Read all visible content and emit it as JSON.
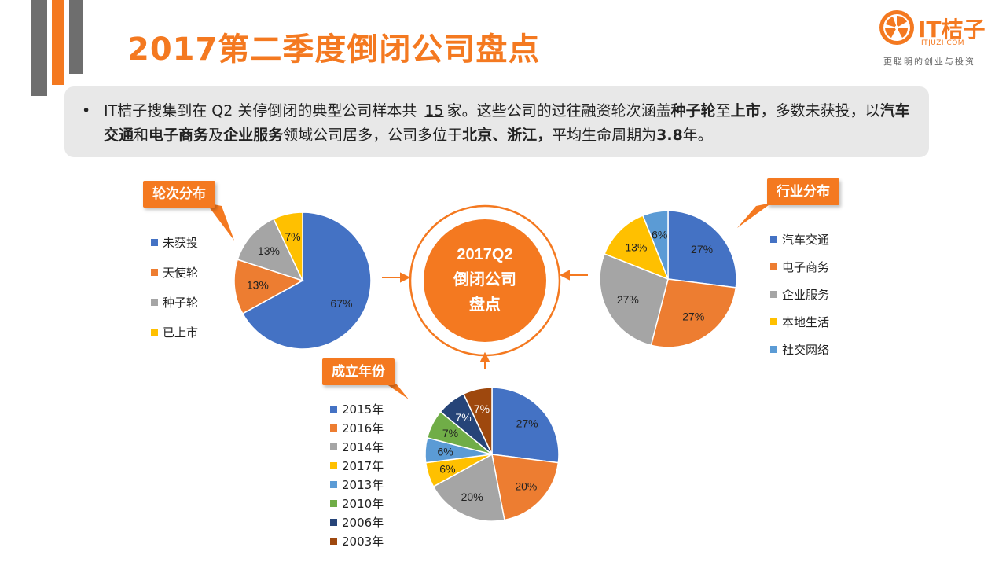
{
  "title": "2017第二季度倒闭公司盘点",
  "logo": {
    "name": "IT桔子",
    "url": "ITJUZI.COM",
    "slogan": "更聪明的创业与投资"
  },
  "summary": {
    "bullet": "•",
    "parts": [
      "IT桔子搜集到在 Q2 关停倒闭的典型公司样本共",
      "15",
      "家。这些公司的过往融资轮次涵盖",
      "种子轮",
      "至",
      "上市",
      "，多数未获投，以",
      "汽车交通",
      "和",
      "电子商务",
      "及",
      "企业服务",
      "领域公司居多，公司多位于",
      "北京、浙江，",
      "平均生命周期为",
      "3.8",
      "年。"
    ]
  },
  "center": {
    "line1": "2017Q2",
    "line2": "倒闭公司",
    "line3": "盘点",
    "color": "#f47920"
  },
  "colors": {
    "blue": "#4472c4",
    "orange": "#ed7d31",
    "gray": "#a5a5a5",
    "yellow": "#ffc000",
    "lightblue": "#5b9bd5",
    "green": "#70ad47",
    "navy": "#264478",
    "brown": "#9e480e",
    "accent": "#f47920"
  },
  "chart_data": [
    {
      "type": "pie",
      "title": "轮次分布",
      "categories": [
        "未获投",
        "天使轮",
        "种子轮",
        "已上市"
      ],
      "values": [
        67,
        13,
        13,
        7
      ],
      "labels": [
        "67%",
        "13%",
        "13%",
        "7%"
      ],
      "colors": [
        "#4472c4",
        "#ed7d31",
        "#a5a5a5",
        "#ffc000"
      ]
    },
    {
      "type": "pie",
      "title": "行业分布",
      "categories": [
        "汽车交通",
        "电子商务",
        "企业服务",
        "本地生活",
        "社交网络"
      ],
      "values": [
        27,
        27,
        27,
        13,
        6
      ],
      "labels": [
        "27%",
        "27%",
        "27%",
        "13%",
        "6%"
      ],
      "colors": [
        "#4472c4",
        "#ed7d31",
        "#a5a5a5",
        "#ffc000",
        "#5b9bd5"
      ]
    },
    {
      "type": "pie",
      "title": "成立年份",
      "categories": [
        "2015年",
        "2016年",
        "2014年",
        "2017年",
        "2013年",
        "2010年",
        "2006年",
        "2003年"
      ],
      "values": [
        27,
        20,
        20,
        6,
        6,
        7,
        7,
        7
      ],
      "labels": [
        "27%",
        "20%",
        "20%",
        "6%",
        "6%",
        "7%",
        "7%",
        "7%"
      ],
      "colors": [
        "#4472c4",
        "#ed7d31",
        "#a5a5a5",
        "#ffc000",
        "#5b9bd5",
        "#70ad47",
        "#264478",
        "#9e480e"
      ]
    }
  ]
}
